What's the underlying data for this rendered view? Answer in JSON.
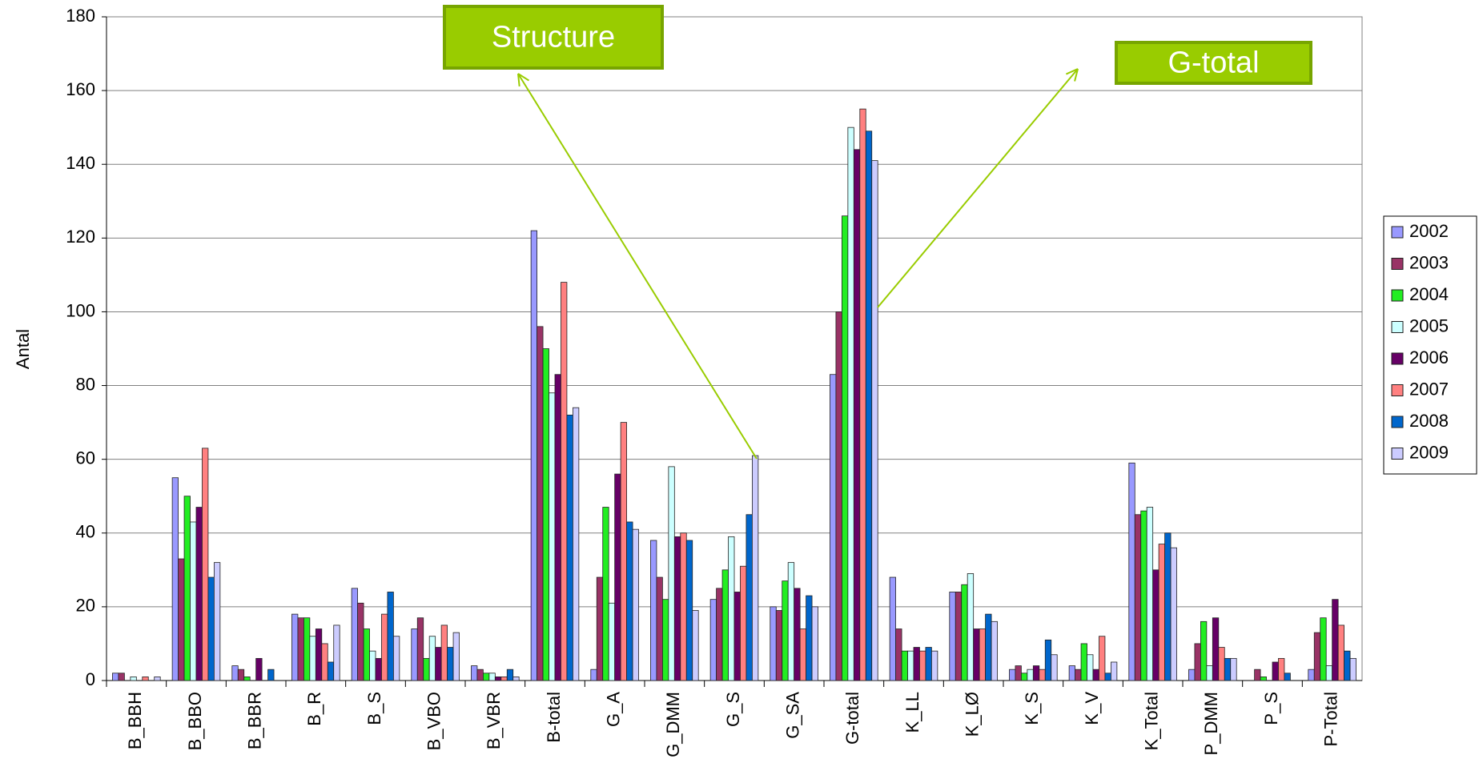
{
  "chart_data": {
    "type": "bar",
    "y_label": "Antal",
    "categories": [
      "B_BBH",
      "B_BBO",
      "B_BBR",
      "B_R",
      "B_S",
      "B_VBO",
      "B_VBR",
      "B-total",
      "G_A",
      "G_DMM",
      "G_S",
      "G_SA",
      "G-total",
      "K_LL",
      "K_LØ",
      "K_S",
      "K_V",
      "K_Total",
      "P_DMM",
      "P_S",
      "P-Total"
    ],
    "series": [
      {
        "name": "2002",
        "color": "#9999ff",
        "values": [
          2,
          55,
          4,
          18,
          25,
          14,
          4,
          122,
          3,
          38,
          22,
          20,
          83,
          28,
          24,
          3,
          4,
          59,
          3,
          0,
          3
        ]
      },
      {
        "name": "2003",
        "color": "#993366",
        "values": [
          2,
          33,
          3,
          17,
          21,
          17,
          3,
          96,
          28,
          28,
          25,
          19,
          100,
          14,
          24,
          4,
          3,
          45,
          10,
          3,
          13
        ]
      },
      {
        "name": "2004",
        "color": "#22ee22",
        "values": [
          0,
          50,
          1,
          17,
          14,
          6,
          2,
          90,
          47,
          22,
          30,
          27,
          126,
          8,
          26,
          2,
          10,
          46,
          16,
          1,
          17
        ]
      },
      {
        "name": "2005",
        "color": "#ccffff",
        "values": [
          1,
          43,
          0,
          12,
          8,
          12,
          2,
          78,
          21,
          58,
          39,
          32,
          150,
          8,
          29,
          3,
          7,
          47,
          4,
          0,
          4
        ]
      },
      {
        "name": "2006",
        "color": "#660066",
        "values": [
          0,
          47,
          6,
          14,
          6,
          9,
          1,
          83,
          56,
          39,
          24,
          25,
          144,
          9,
          14,
          4,
          3,
          30,
          17,
          5,
          22
        ]
      },
      {
        "name": "2007",
        "color": "#ff8080",
        "values": [
          1,
          63,
          0,
          10,
          18,
          15,
          1,
          108,
          70,
          40,
          31,
          14,
          155,
          8,
          14,
          3,
          12,
          37,
          9,
          6,
          15
        ]
      },
      {
        "name": "2008",
        "color": "#0066cc",
        "values": [
          0,
          28,
          3,
          5,
          24,
          9,
          3,
          72,
          43,
          38,
          45,
          23,
          149,
          9,
          18,
          11,
          2,
          40,
          6,
          2,
          8
        ]
      },
      {
        "name": "2009",
        "color": "#ccccff",
        "values": [
          1,
          32,
          0,
          15,
          12,
          13,
          1,
          74,
          41,
          19,
          61,
          20,
          141,
          8,
          16,
          7,
          5,
          36,
          6,
          0,
          6
        ]
      }
    ],
    "ylim": [
      0,
      180
    ],
    "yticks": [
      0,
      20,
      40,
      60,
      80,
      100,
      120,
      140,
      160,
      180
    ],
    "grid": true,
    "annotations": [
      "Structure",
      "G-total"
    ]
  }
}
